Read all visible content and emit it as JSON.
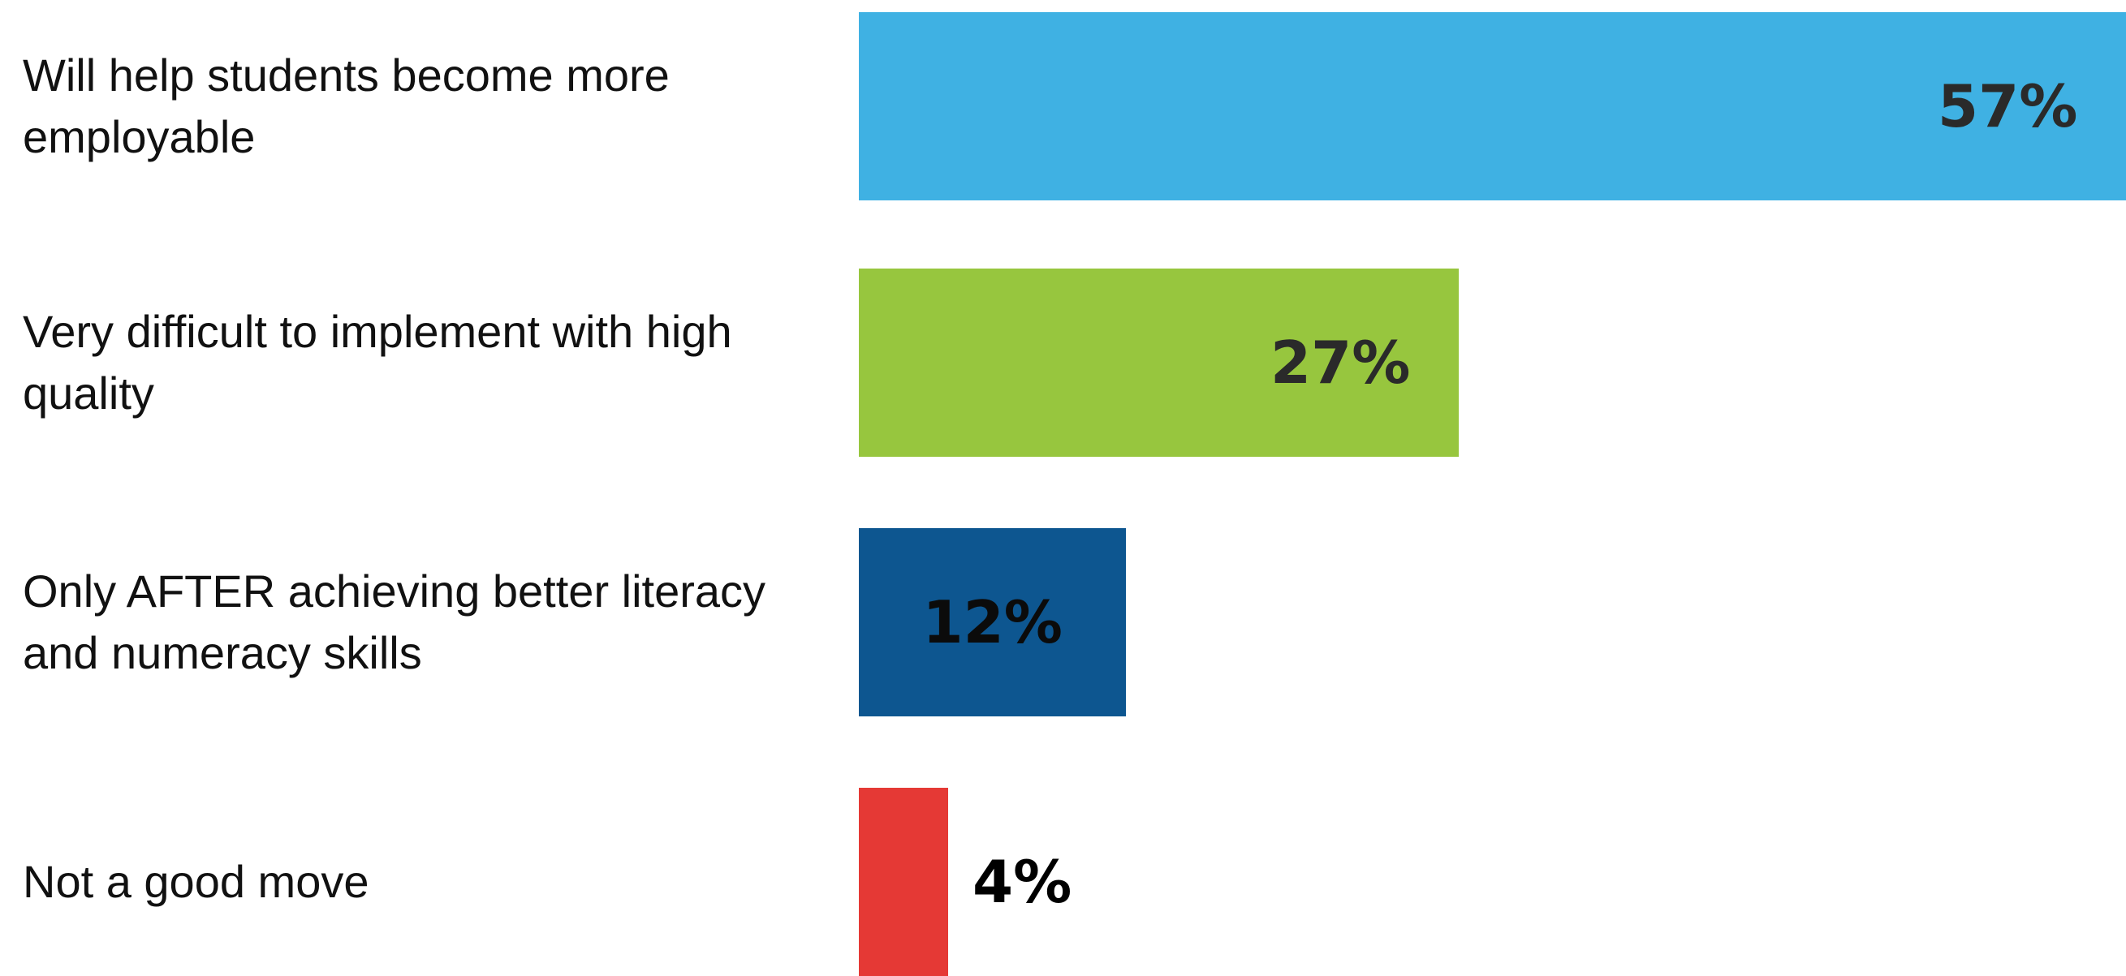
{
  "chart_data": {
    "type": "bar",
    "orientation": "horizontal",
    "categories": [
      "Will help students become more employable",
      "Very difficult to implement with high quality",
      "Only AFTER achieving better literacy and numeracy skills",
      "Not a good move"
    ],
    "values": [
      57,
      27,
      12,
      4
    ],
    "value_labels": [
      "57%",
      "27%",
      "12%",
      "4%"
    ],
    "colors": [
      "#3FB1E3",
      "#97C63E",
      "#0D5690",
      "#E53935"
    ],
    "value_label_colors": [
      "#2a2a2a",
      "#2a2a2a",
      "#0b0b0b",
      "#000000"
    ],
    "value_label_position": [
      "inside-end",
      "inside-end",
      "inside-end",
      "outside-end"
    ],
    "xlim": [
      0,
      57
    ],
    "grid": false,
    "legend": "none"
  }
}
